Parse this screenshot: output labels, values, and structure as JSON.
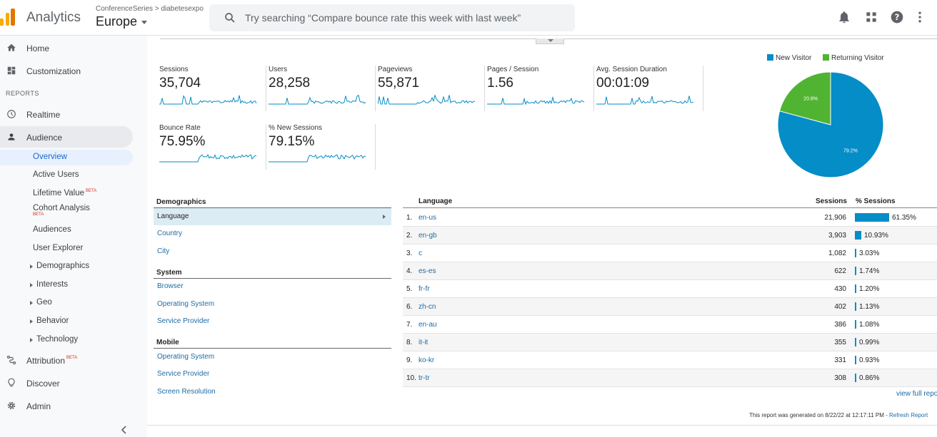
{
  "header": {
    "app_name": "Analytics",
    "breadcrumb": "ConferenceSeries > diabetesexpo",
    "property": "Europe",
    "search_placeholder": "Try searching “Compare bounce rate this week with last week”",
    "icons": [
      "bell-icon",
      "apps-grid-icon",
      "help-icon",
      "more-vert-icon"
    ]
  },
  "sidebar": {
    "home": "Home",
    "customization": "Customization",
    "reports_label": "REPORTS",
    "realtime": "Realtime",
    "audience": "Audience",
    "audience_items": [
      {
        "label": "Overview"
      },
      {
        "label": "Active Users"
      },
      {
        "label": "Lifetime Value",
        "badge": "BETA"
      },
      {
        "label": "Cohort Analysis",
        "badge": "BETA"
      },
      {
        "label": "Audiences"
      },
      {
        "label": "User Explorer"
      },
      {
        "label": "Demographics"
      },
      {
        "label": "Interests"
      },
      {
        "label": "Geo"
      },
      {
        "label": "Behavior"
      },
      {
        "label": "Technology"
      }
    ],
    "attribution": "Attribution",
    "attribution_badge": "BETA",
    "discover": "Discover",
    "admin": "Admin"
  },
  "metrics": [
    {
      "label": "Sessions",
      "value": "35,704"
    },
    {
      "label": "Users",
      "value": "28,258"
    },
    {
      "label": "Pageviews",
      "value": "55,871"
    },
    {
      "label": "Pages / Session",
      "value": "1.56"
    },
    {
      "label": "Avg. Session Duration",
      "value": "00:01:09"
    },
    {
      "label": "Bounce Rate",
      "value": "75.95%"
    },
    {
      "label": "% New Sessions",
      "value": "79.15%"
    }
  ],
  "pie": {
    "legend": [
      {
        "name": "New Visitor",
        "color": "#058dc7"
      },
      {
        "name": "Returning Visitor",
        "color": "#50b432"
      }
    ],
    "values": [
      79.2,
      20.8
    ],
    "labels": [
      "79.2%",
      "20.8%"
    ]
  },
  "dimensions": {
    "demographics_title": "Demographics",
    "demographics": [
      "Language",
      "Country",
      "City"
    ],
    "system_title": "System",
    "system": [
      "Browser",
      "Operating System",
      "Service Provider"
    ],
    "mobile_title": "Mobile",
    "mobile": [
      "Operating System",
      "Service Provider",
      "Screen Resolution"
    ]
  },
  "table": {
    "headers": {
      "language": "Language",
      "sessions": "Sessions",
      "pct": "% Sessions"
    },
    "rows": [
      {
        "n": "1.",
        "lang": "en-us",
        "sessions": "21,906",
        "pct": "61.35%",
        "share": 61.35
      },
      {
        "n": "2.",
        "lang": "en-gb",
        "sessions": "3,903",
        "pct": "10.93%",
        "share": 10.93
      },
      {
        "n": "3.",
        "lang": "c",
        "sessions": "1,082",
        "pct": "3.03%",
        "share": 3.03
      },
      {
        "n": "4.",
        "lang": "es-es",
        "sessions": "622",
        "pct": "1.74%",
        "share": 1.74
      },
      {
        "n": "5.",
        "lang": "fr-fr",
        "sessions": "430",
        "pct": "1.20%",
        "share": 1.2
      },
      {
        "n": "6.",
        "lang": "zh-cn",
        "sessions": "402",
        "pct": "1.13%",
        "share": 1.13
      },
      {
        "n": "7.",
        "lang": "en-au",
        "sessions": "386",
        "pct": "1.08%",
        "share": 1.08
      },
      {
        "n": "8.",
        "lang": "it-it",
        "sessions": "355",
        "pct": "0.99%",
        "share": 0.99
      },
      {
        "n": "9.",
        "lang": "ko-kr",
        "sessions": "331",
        "pct": "0.93%",
        "share": 0.93
      },
      {
        "n": "10.",
        "lang": "tr-tr",
        "sessions": "308",
        "pct": "0.86%",
        "share": 0.86
      }
    ],
    "view_full": "view full report"
  },
  "footer": {
    "generated": "This report was generated on 8/22/22 at 12:17:11 PM - ",
    "refresh": "Refresh Report"
  }
}
